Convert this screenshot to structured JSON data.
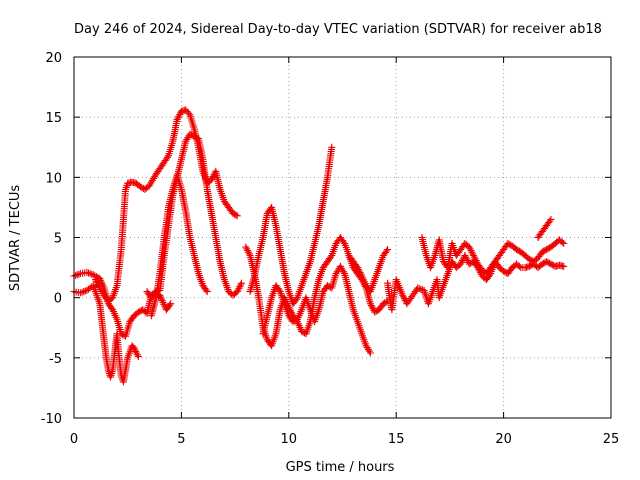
{
  "chart_data": {
    "type": "scatter",
    "title": "Day 246 of 2024, Sidereal Day-to-day VTEC variation (SDTVAR) for receiver ab18",
    "xlabel": "GPS time / hours",
    "ylabel": "SDTVAR / TECUs",
    "xlim": [
      0,
      25
    ],
    "ylim": [
      -10,
      20
    ],
    "xticks": [
      0,
      5,
      10,
      15,
      20,
      25
    ],
    "yticks": [
      -10,
      -5,
      0,
      5,
      10,
      15,
      20
    ],
    "grid": true,
    "marker": "plus",
    "marker_color": "#ee0000",
    "series": [
      {
        "name": "SDTVAR",
        "trace": [
          [
            0.0,
            1.8
          ],
          [
            0.3,
            2.0
          ],
          [
            0.6,
            2.1
          ],
          [
            0.9,
            1.9
          ],
          [
            1.2,
            1.6
          ],
          [
            1.4,
            0.8
          ],
          [
            1.6,
            -0.5
          ],
          [
            1.8,
            -1.0
          ],
          [
            2.0,
            -1.8
          ],
          [
            2.2,
            -3.0
          ],
          [
            2.4,
            -3.2
          ],
          [
            2.6,
            -2.0
          ],
          [
            2.8,
            -1.5
          ],
          [
            3.0,
            -1.2
          ],
          [
            3.2,
            -1.0
          ],
          [
            3.4,
            -1.3
          ],
          [
            3.6,
            0.2
          ],
          [
            3.8,
            0.5
          ],
          [
            4.0,
            0.6
          ],
          [
            4.2,
            3.5
          ],
          [
            4.4,
            6.0
          ],
          [
            4.6,
            8.5
          ],
          [
            4.8,
            10.0
          ],
          [
            5.0,
            11.5
          ],
          [
            5.2,
            13.0
          ],
          [
            5.4,
            13.6
          ],
          [
            5.6,
            13.4
          ],
          [
            5.8,
            13.2
          ],
          [
            6.0,
            11.5
          ],
          [
            6.2,
            9.0
          ],
          [
            6.4,
            7.0
          ],
          [
            6.6,
            5.0
          ],
          [
            6.8,
            3.0
          ],
          [
            7.0,
            1.5
          ],
          [
            7.2,
            0.5
          ],
          [
            7.4,
            0.2
          ],
          [
            7.6,
            0.5
          ],
          [
            7.8,
            1.2
          ]
        ]
      },
      {
        "name": "SDTVAR",
        "trace": [
          [
            0.0,
            0.5
          ],
          [
            0.3,
            0.4
          ],
          [
            0.6,
            0.6
          ],
          [
            0.9,
            1.0
          ],
          [
            1.0,
            0.5
          ],
          [
            1.2,
            -0.5
          ],
          [
            1.3,
            -2.0
          ],
          [
            1.4,
            -3.5
          ],
          [
            1.5,
            -5.0
          ],
          [
            1.6,
            -6.0
          ],
          [
            1.7,
            -6.6
          ],
          [
            1.8,
            -6.0
          ],
          [
            1.9,
            -4.5
          ],
          [
            2.0,
            -3.0
          ],
          [
            2.1,
            -5.0
          ],
          [
            2.2,
            -6.5
          ],
          [
            2.3,
            -7.0
          ],
          [
            2.4,
            -6.0
          ],
          [
            2.5,
            -5.0
          ],
          [
            2.6,
            -4.5
          ],
          [
            2.7,
            -4.0
          ],
          [
            2.8,
            -4.2
          ],
          [
            2.9,
            -4.6
          ],
          [
            3.0,
            -4.9
          ]
        ]
      },
      {
        "name": "SDTVAR",
        "trace": [
          [
            1.0,
            1.5
          ],
          [
            1.2,
            0.8
          ],
          [
            1.4,
            0.2
          ],
          [
            1.6,
            -0.3
          ],
          [
            1.8,
            0.0
          ],
          [
            2.0,
            1.0
          ],
          [
            2.2,
            4.0
          ],
          [
            2.3,
            6.5
          ],
          [
            2.4,
            9.0
          ],
          [
            2.5,
            9.5
          ],
          [
            2.7,
            9.6
          ],
          [
            2.9,
            9.5
          ],
          [
            3.1,
            9.2
          ],
          [
            3.3,
            9.0
          ],
          [
            3.5,
            9.3
          ],
          [
            3.8,
            10.2
          ],
          [
            4.1,
            11.0
          ],
          [
            4.4,
            11.8
          ],
          [
            4.6,
            13.0
          ],
          [
            4.8,
            14.8
          ],
          [
            5.0,
            15.5
          ],
          [
            5.2,
            15.6
          ],
          [
            5.4,
            15.2
          ],
          [
            5.6,
            14.0
          ],
          [
            5.8,
            12.5
          ],
          [
            6.0,
            10.5
          ],
          [
            6.2,
            9.5
          ],
          [
            6.4,
            9.8
          ],
          [
            6.6,
            10.5
          ],
          [
            6.8,
            9.0
          ],
          [
            7.0,
            8.0
          ],
          [
            7.2,
            7.5
          ],
          [
            7.4,
            7.0
          ],
          [
            7.6,
            6.8
          ]
        ]
      },
      {
        "name": "SDTVAR",
        "trace": [
          [
            3.6,
            -1.5
          ],
          [
            3.8,
            -0.2
          ],
          [
            4.0,
            2.0
          ],
          [
            4.2,
            5.0
          ],
          [
            4.4,
            7.5
          ],
          [
            4.6,
            9.0
          ],
          [
            4.8,
            10.2
          ],
          [
            5.0,
            9.0
          ],
          [
            5.2,
            7.2
          ],
          [
            5.4,
            5.0
          ],
          [
            5.6,
            3.5
          ],
          [
            5.8,
            2.0
          ],
          [
            6.0,
            1.0
          ],
          [
            6.2,
            0.5
          ]
        ]
      },
      {
        "name": "SDTVAR",
        "trace": [
          [
            8.0,
            4.2
          ],
          [
            8.2,
            3.5
          ],
          [
            8.4,
            2.0
          ],
          [
            8.6,
            0.0
          ],
          [
            8.8,
            -2.5
          ],
          [
            9.0,
            -3.5
          ],
          [
            9.2,
            -4.0
          ],
          [
            9.4,
            -3.0
          ],
          [
            9.6,
            -1.0
          ],
          [
            9.8,
            0.0
          ],
          [
            10.0,
            -0.8
          ],
          [
            10.2,
            -1.5
          ],
          [
            10.4,
            -2.0
          ],
          [
            10.6,
            -2.8
          ],
          [
            10.8,
            -3.0
          ],
          [
            11.0,
            -2.0
          ],
          [
            11.2,
            0.0
          ],
          [
            11.4,
            1.5
          ],
          [
            11.6,
            2.5
          ],
          [
            11.8,
            3.0
          ],
          [
            12.0,
            3.5
          ],
          [
            12.2,
            4.5
          ],
          [
            12.4,
            5.0
          ],
          [
            12.6,
            4.5
          ],
          [
            12.8,
            3.5
          ],
          [
            13.0,
            2.5
          ],
          [
            13.2,
            2.0
          ],
          [
            13.4,
            1.5
          ],
          [
            13.6,
            0.8
          ],
          [
            13.8,
            -0.5
          ],
          [
            14.0,
            -1.2
          ],
          [
            14.2,
            -1.0
          ],
          [
            14.4,
            -0.5
          ],
          [
            14.6,
            -0.3
          ]
        ]
      },
      {
        "name": "SDTVAR",
        "trace": [
          [
            8.2,
            0.5
          ],
          [
            8.4,
            1.8
          ],
          [
            8.6,
            3.5
          ],
          [
            8.8,
            5.0
          ],
          [
            9.0,
            7.0
          ],
          [
            9.2,
            7.5
          ],
          [
            9.4,
            6.0
          ],
          [
            9.6,
            4.0
          ],
          [
            9.8,
            2.0
          ],
          [
            10.0,
            0.5
          ],
          [
            10.2,
            -0.5
          ],
          [
            10.4,
            0.0
          ],
          [
            10.6,
            1.0
          ],
          [
            10.8,
            2.0
          ],
          [
            11.0,
            3.0
          ],
          [
            11.2,
            4.5
          ],
          [
            11.4,
            6.0
          ],
          [
            11.6,
            8.0
          ],
          [
            11.8,
            10.0
          ],
          [
            12.0,
            12.5
          ]
        ]
      },
      {
        "name": "SDTVAR",
        "trace": [
          [
            8.8,
            -3.0
          ],
          [
            9.0,
            -1.5
          ],
          [
            9.2,
            0.0
          ],
          [
            9.4,
            1.0
          ],
          [
            9.6,
            0.5
          ],
          [
            9.8,
            -0.5
          ],
          [
            10.0,
            -1.5
          ],
          [
            10.2,
            -2.0
          ],
          [
            10.4,
            -1.8
          ],
          [
            10.6,
            -1.0
          ],
          [
            10.8,
            0.0
          ],
          [
            11.0,
            -1.0
          ],
          [
            11.2,
            -2.0
          ],
          [
            11.4,
            -1.0
          ],
          [
            11.6,
            0.5
          ],
          [
            11.8,
            1.0
          ],
          [
            12.0,
            0.8
          ],
          [
            12.2,
            2.0
          ],
          [
            12.4,
            2.6
          ],
          [
            12.6,
            2.0
          ],
          [
            12.8,
            0.5
          ],
          [
            13.0,
            -1.0
          ],
          [
            13.2,
            -2.0
          ],
          [
            13.4,
            -3.0
          ],
          [
            13.6,
            -4.0
          ],
          [
            13.8,
            -4.6
          ]
        ]
      },
      {
        "name": "SDTVAR",
        "trace": [
          [
            12.8,
            3.5
          ],
          [
            13.0,
            3.0
          ],
          [
            13.2,
            2.5
          ],
          [
            13.4,
            1.8
          ],
          [
            13.6,
            1.0
          ],
          [
            13.8,
            0.5
          ],
          [
            14.0,
            1.5
          ],
          [
            14.2,
            2.5
          ],
          [
            14.4,
            3.5
          ],
          [
            14.6,
            4.0
          ]
        ]
      },
      {
        "name": "SDTVAR",
        "trace": [
          [
            14.6,
            1.2
          ],
          [
            14.7,
            0.0
          ],
          [
            14.8,
            -1.0
          ],
          [
            15.0,
            1.5
          ],
          [
            15.3,
            0.2
          ],
          [
            15.5,
            -0.5
          ],
          [
            16.0,
            0.8
          ],
          [
            16.3,
            0.6
          ],
          [
            16.5,
            -0.5
          ],
          [
            16.7,
            0.5
          ],
          [
            16.9,
            1.5
          ],
          [
            17.0,
            0.0
          ],
          [
            17.2,
            1.0
          ],
          [
            17.4,
            2.0
          ],
          [
            17.6,
            3.0
          ],
          [
            17.8,
            2.5
          ],
          [
            18.0,
            2.8
          ],
          [
            18.2,
            3.5
          ],
          [
            18.4,
            2.8
          ],
          [
            18.6,
            3.0
          ],
          [
            18.8,
            2.5
          ],
          [
            19.0,
            1.8
          ],
          [
            19.2,
            1.5
          ],
          [
            19.4,
            2.0
          ],
          [
            19.6,
            3.0
          ],
          [
            19.8,
            3.5
          ],
          [
            20.0,
            4.0
          ],
          [
            20.2,
            4.5
          ],
          [
            20.4,
            4.3
          ],
          [
            20.6,
            4.0
          ],
          [
            20.8,
            3.8
          ],
          [
            21.0,
            3.5
          ],
          [
            21.2,
            3.2
          ],
          [
            21.4,
            3.0
          ],
          [
            21.6,
            3.3
          ],
          [
            21.8,
            3.8
          ],
          [
            22.0,
            4.0
          ],
          [
            22.2,
            4.2
          ],
          [
            22.4,
            4.5
          ],
          [
            22.6,
            4.8
          ],
          [
            22.8,
            4.5
          ]
        ]
      },
      {
        "name": "SDTVAR",
        "trace": [
          [
            16.2,
            5.0
          ],
          [
            16.4,
            3.5
          ],
          [
            16.6,
            2.5
          ],
          [
            16.8,
            3.5
          ],
          [
            17.0,
            4.8
          ],
          [
            17.2,
            3.0
          ],
          [
            17.4,
            2.5
          ],
          [
            17.6,
            4.5
          ],
          [
            17.8,
            3.5
          ],
          [
            18.0,
            4.0
          ],
          [
            18.2,
            4.5
          ],
          [
            18.4,
            4.2
          ],
          [
            18.6,
            3.5
          ],
          [
            18.8,
            2.8
          ],
          [
            19.0,
            2.3
          ],
          [
            19.2,
            2.0
          ],
          [
            19.4,
            2.5
          ],
          [
            19.6,
            3.0
          ],
          [
            19.8,
            2.5
          ],
          [
            20.0,
            2.2
          ],
          [
            20.2,
            2.0
          ],
          [
            20.4,
            2.5
          ],
          [
            20.6,
            2.8
          ],
          [
            20.8,
            2.5
          ],
          [
            21.0,
            2.5
          ],
          [
            21.2,
            2.6
          ],
          [
            21.4,
            2.8
          ],
          [
            21.6,
            2.5
          ],
          [
            21.8,
            2.8
          ],
          [
            22.0,
            3.0
          ],
          [
            22.2,
            2.8
          ],
          [
            22.4,
            2.6
          ],
          [
            22.6,
            2.7
          ],
          [
            22.8,
            2.6
          ]
        ]
      },
      {
        "name": "SDTVAR",
        "trace": [
          [
            21.6,
            5.0
          ],
          [
            21.8,
            5.5
          ],
          [
            22.0,
            6.0
          ],
          [
            22.2,
            6.5
          ]
        ]
      },
      {
        "name": "SDTVAR",
        "trace": [
          [
            3.4,
            0.5
          ],
          [
            3.6,
            0.0
          ],
          [
            3.8,
            0.3
          ],
          [
            4.0,
            0.2
          ],
          [
            4.3,
            -1.0
          ],
          [
            4.5,
            -0.5
          ]
        ]
      }
    ]
  }
}
